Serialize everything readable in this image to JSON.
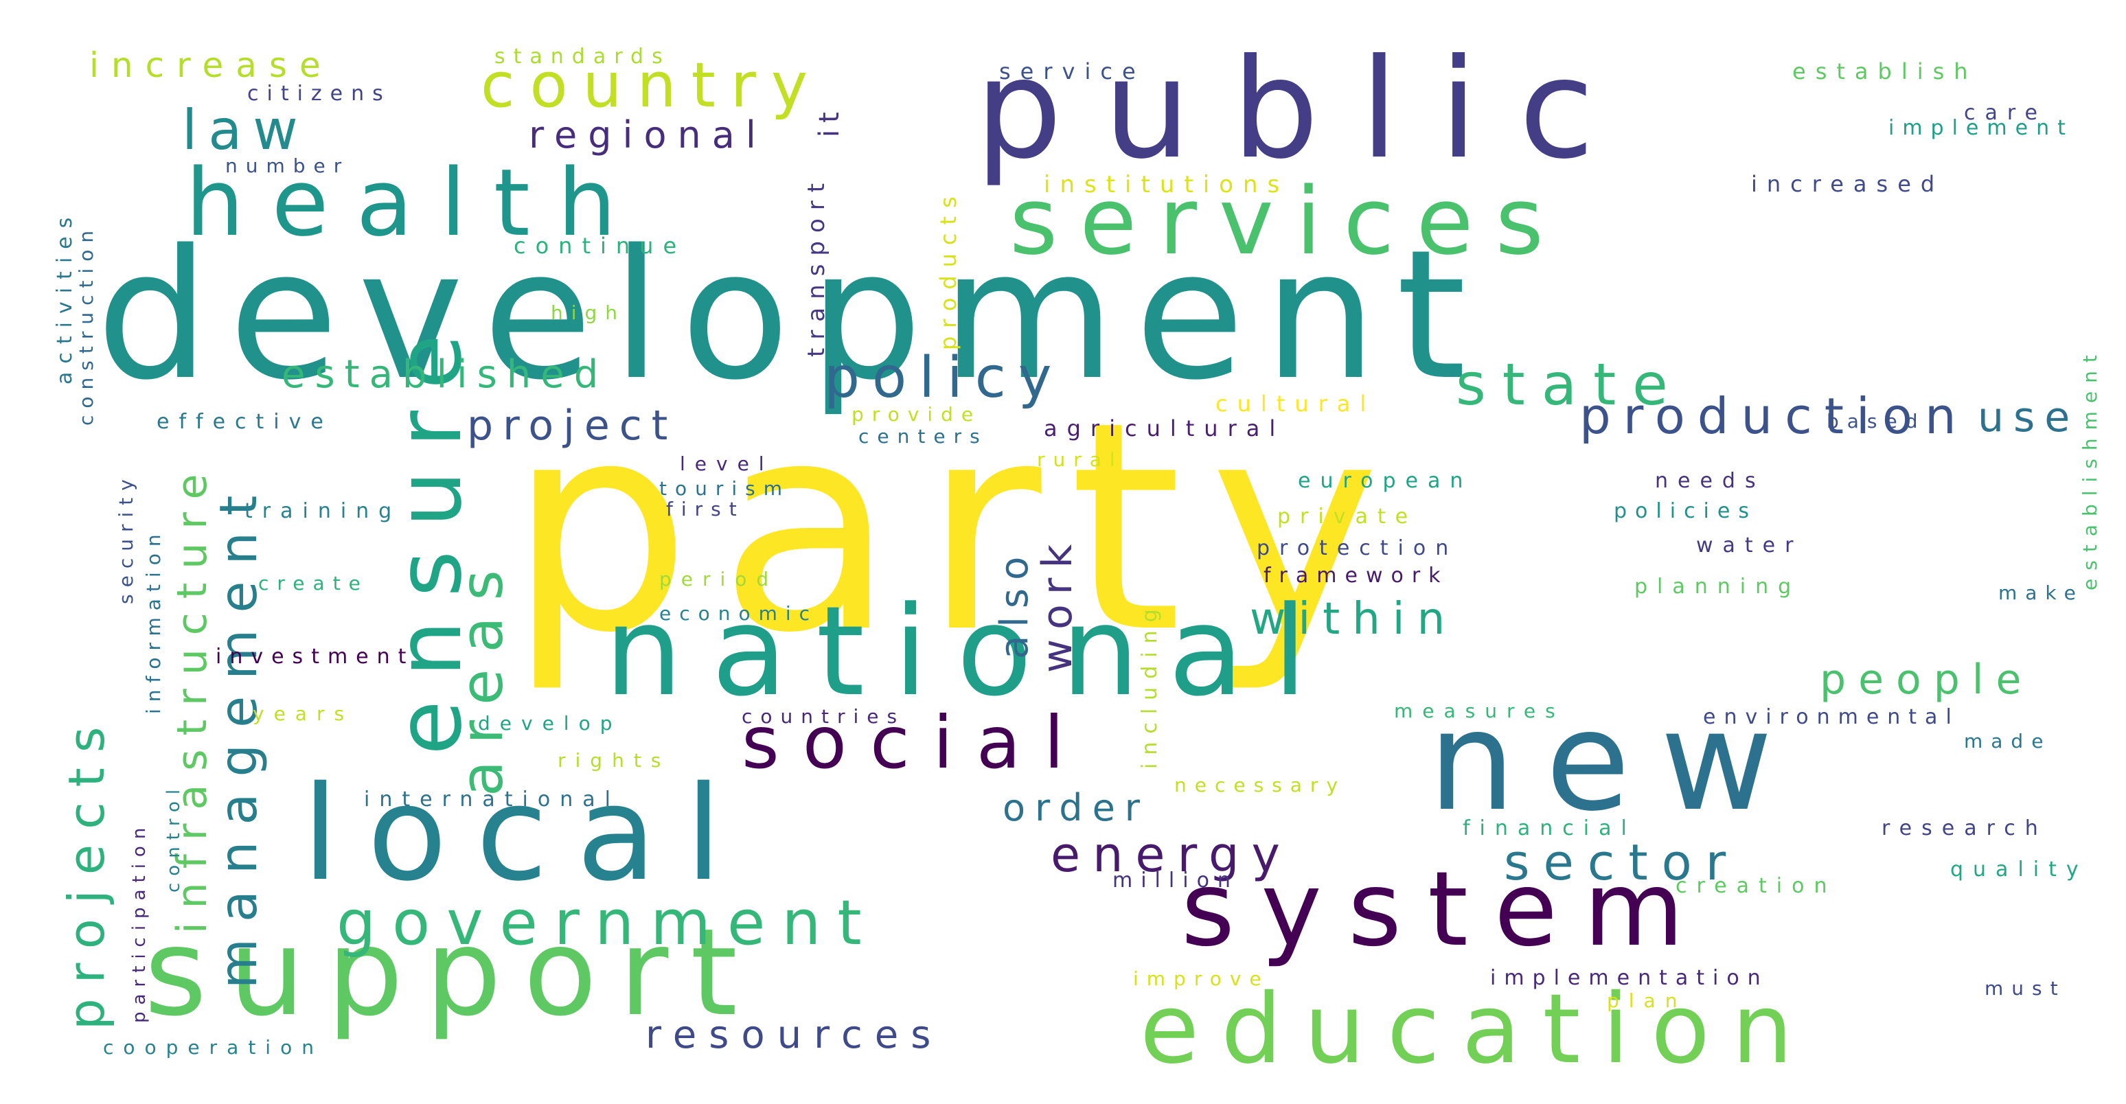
{
  "words": [
    {
      "text": "party",
      "color": "#fde725",
      "rotate": false
    },
    {
      "text": "development",
      "color": "#21918c",
      "rotate": false
    },
    {
      "text": "public",
      "color": "#433e85",
      "rotate": false
    },
    {
      "text": "national",
      "color": "#1f9e89",
      "rotate": false
    },
    {
      "text": "local",
      "color": "#26828e",
      "rotate": false
    },
    {
      "text": "support",
      "color": "#5ec962",
      "rotate": false
    },
    {
      "text": "health",
      "color": "#1f968b",
      "rotate": false
    },
    {
      "text": "services",
      "color": "#4ac16d",
      "rotate": false
    },
    {
      "text": "new",
      "color": "#2c728e",
      "rotate": false
    },
    {
      "text": "system",
      "color": "#440154",
      "rotate": false
    },
    {
      "text": "education",
      "color": "#73d056",
      "rotate": false
    },
    {
      "text": "social",
      "color": "#440154",
      "rotate": false
    },
    {
      "text": "ensure",
      "color": "#20a486",
      "rotate": true
    },
    {
      "text": "country",
      "color": "#c2df23",
      "rotate": false
    },
    {
      "text": "government",
      "color": "#35b779",
      "rotate": false
    },
    {
      "text": "areas",
      "color": "#3bbb75",
      "rotate": true
    },
    {
      "text": "infrastructure",
      "color": "#5ec962",
      "rotate": true
    },
    {
      "text": "management",
      "color": "#277f8e",
      "rotate": true
    },
    {
      "text": "projects",
      "color": "#2db27d",
      "rotate": true
    },
    {
      "text": "policy",
      "color": "#31688e",
      "rotate": false
    },
    {
      "text": "state",
      "color": "#35b779",
      "rotate": false
    },
    {
      "text": "production",
      "color": "#3b528b",
      "rotate": false
    },
    {
      "text": "sector",
      "color": "#2a788e",
      "rotate": false
    },
    {
      "text": "energy",
      "color": "#481a6c",
      "rotate": false
    },
    {
      "text": "law",
      "color": "#238a8d",
      "rotate": false
    },
    {
      "text": "established",
      "color": "#35b779",
      "rotate": false
    },
    {
      "text": "project",
      "color": "#3b528b",
      "rotate": false
    },
    {
      "text": "within",
      "color": "#22a785",
      "rotate": false
    },
    {
      "text": "people",
      "color": "#4ac16d",
      "rotate": false
    },
    {
      "text": "resources",
      "color": "#3e4a89",
      "rotate": false
    },
    {
      "text": "regional",
      "color": "#472d7b",
      "rotate": false
    },
    {
      "text": "work",
      "color": "#46337f",
      "rotate": true
    },
    {
      "text": "also",
      "color": "#31688e",
      "rotate": true
    },
    {
      "text": "order",
      "color": "#2c728e",
      "rotate": false
    },
    {
      "text": "use",
      "color": "#2c728e",
      "rotate": false
    },
    {
      "text": "increase",
      "color": "#b5de2b",
      "rotate": false
    },
    {
      "text": "standards",
      "color": "#addc30",
      "rotate": false
    },
    {
      "text": "citizens",
      "color": "#414487",
      "rotate": false
    },
    {
      "text": "it",
      "color": "#46337f",
      "rotate": true
    },
    {
      "text": "transport",
      "color": "#453781",
      "rotate": true
    },
    {
      "text": "products",
      "color": "#d8e219",
      "rotate": true
    },
    {
      "text": "including",
      "color": "#b5de2b",
      "rotate": true
    },
    {
      "text": "service",
      "color": "#3b528b",
      "rotate": false
    },
    {
      "text": "establish",
      "color": "#5ec962",
      "rotate": false
    },
    {
      "text": "care",
      "color": "#414487",
      "rotate": false
    },
    {
      "text": "implement",
      "color": "#1f9e89",
      "rotate": false
    },
    {
      "text": "increased",
      "color": "#3e4a89",
      "rotate": false
    },
    {
      "text": "institutions",
      "color": "#dde318",
      "rotate": false
    },
    {
      "text": "number",
      "color": "#3b528b",
      "rotate": false
    },
    {
      "text": "continue",
      "color": "#2db27d",
      "rotate": false
    },
    {
      "text": "high",
      "color": "#8fd744",
      "rotate": false
    },
    {
      "text": "activities",
      "color": "#2a788e",
      "rotate": true
    },
    {
      "text": "construction",
      "color": "#31688e",
      "rotate": true
    },
    {
      "text": "security",
      "color": "#3b528b",
      "rotate": true
    },
    {
      "text": "information",
      "color": "#2c728e",
      "rotate": true
    },
    {
      "text": "control",
      "color": "#26828e",
      "rotate": true
    },
    {
      "text": "participation",
      "color": "#482878",
      "rotate": true
    },
    {
      "text": "establishment",
      "color": "#4ac16d",
      "rotate": true
    },
    {
      "text": "effective",
      "color": "#2a788e",
      "rotate": false
    },
    {
      "text": "provide",
      "color": "#c2df23",
      "rotate": false
    },
    {
      "text": "centers",
      "color": "#2c728e",
      "rotate": false
    },
    {
      "text": "agricultural",
      "color": "#481f70",
      "rotate": false
    },
    {
      "text": "cultural",
      "color": "#fde725",
      "rotate": false
    },
    {
      "text": "based",
      "color": "#3b528b",
      "rotate": false
    },
    {
      "text": "level",
      "color": "#482878",
      "rotate": false
    },
    {
      "text": "tourism",
      "color": "#2c728e",
      "rotate": false
    },
    {
      "text": "first",
      "color": "#414487",
      "rotate": false
    },
    {
      "text": "rural",
      "color": "#d2e21b",
      "rotate": false
    },
    {
      "text": "european",
      "color": "#20a486",
      "rotate": false
    },
    {
      "text": "needs",
      "color": "#46327e",
      "rotate": false
    },
    {
      "text": "private",
      "color": "#c2df23",
      "rotate": false
    },
    {
      "text": "policies",
      "color": "#21918c",
      "rotate": false
    },
    {
      "text": "training",
      "color": "#26828e",
      "rotate": false
    },
    {
      "text": "protection",
      "color": "#3e4a89",
      "rotate": false
    },
    {
      "text": "water",
      "color": "#443983",
      "rotate": false
    },
    {
      "text": "framework",
      "color": "#481a6c",
      "rotate": false
    },
    {
      "text": "period",
      "color": "#a0da39",
      "rotate": false
    },
    {
      "text": "planning",
      "color": "#5ec962",
      "rotate": false
    },
    {
      "text": "create",
      "color": "#2db27d",
      "rotate": false
    },
    {
      "text": "economic",
      "color": "#26828e",
      "rotate": false
    },
    {
      "text": "make",
      "color": "#2c728e",
      "rotate": false
    },
    {
      "text": "investment",
      "color": "#440154",
      "rotate": false
    },
    {
      "text": "years",
      "color": "#c2df23",
      "rotate": false
    },
    {
      "text": "develop",
      "color": "#20a486",
      "rotate": false
    },
    {
      "text": "countries",
      "color": "#482878",
      "rotate": false
    },
    {
      "text": "measures",
      "color": "#35b779",
      "rotate": false
    },
    {
      "text": "environmental",
      "color": "#3e4a89",
      "rotate": false
    },
    {
      "text": "made",
      "color": "#2a788e",
      "rotate": false
    },
    {
      "text": "rights",
      "color": "#b5de2b",
      "rotate": false
    },
    {
      "text": "necessary",
      "color": "#c2df23",
      "rotate": false
    },
    {
      "text": "international",
      "color": "#2c728e",
      "rotate": false
    },
    {
      "text": "financial",
      "color": "#2db27d",
      "rotate": false
    },
    {
      "text": "research",
      "color": "#414487",
      "rotate": false
    },
    {
      "text": "million",
      "color": "#46337f",
      "rotate": false
    },
    {
      "text": "quality",
      "color": "#22a785",
      "rotate": false
    },
    {
      "text": "creation",
      "color": "#5ec962",
      "rotate": false
    },
    {
      "text": "improve",
      "color": "#d8e219",
      "rotate": false
    },
    {
      "text": "implementation",
      "color": "#482878",
      "rotate": false
    },
    {
      "text": "plan",
      "color": "#d8e219",
      "rotate": false
    },
    {
      "text": "must",
      "color": "#3e4a89",
      "rotate": false
    },
    {
      "text": "cooperation",
      "color": "#26828e",
      "rotate": false
    }
  ]
}
